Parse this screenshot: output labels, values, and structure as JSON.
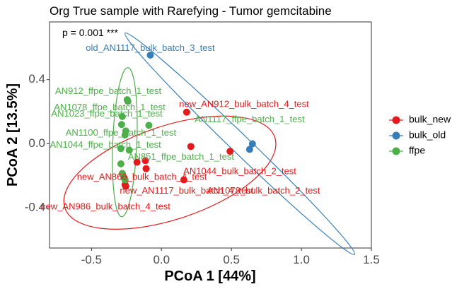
{
  "chart_data": {
    "type": "scatter",
    "title": "Org True sample with Rarefying - Tumor gemcitabine",
    "xlabel": "PCoA 1 [44%]",
    "ylabel": "PCoA 2 [13.5%]",
    "annotation": "p = 0.001 ***",
    "xlim": [
      -0.8,
      1.5
    ],
    "ylim": [
      -0.65,
      0.76
    ],
    "x_ticks": [
      -0.5,
      0.0,
      0.5,
      1.0,
      1.5
    ],
    "x_tick_labels": [
      "-0.5",
      "0.0",
      "0.5",
      "1.0",
      "1.5"
    ],
    "y_ticks": [
      -0.4,
      0.0,
      0.4
    ],
    "y_tick_labels": [
      "-0.4",
      "0.0",
      "0.4"
    ],
    "grid": false,
    "legend": {
      "position": "right",
      "entries": [
        {
          "name": "bulk_new",
          "color": "#e41a1c"
        },
        {
          "name": "bulk_old",
          "color": "#377eb8"
        },
        {
          "name": "ffpe",
          "color": "#4daf4a"
        }
      ]
    },
    "series": [
      {
        "name": "bulk_new",
        "color": "#e41a1c",
        "points": [
          {
            "x": 0.18,
            "y": 0.197
          },
          {
            "x": 0.21,
            "y": -0.017
          },
          {
            "x": 0.49,
            "y": -0.047
          },
          {
            "x": -0.115,
            "y": -0.105
          },
          {
            "x": -0.175,
            "y": -0.115
          },
          {
            "x": -0.11,
            "y": -0.155
          },
          {
            "x": 0.16,
            "y": -0.225
          },
          {
            "x": -0.265,
            "y": -0.215
          },
          {
            "x": -0.26,
            "y": -0.255
          },
          {
            "x": -0.255,
            "y": -0.265
          }
        ],
        "ellipse": {
          "center": [
            0.06,
            -0.18
          ],
          "points_on_boundary": [
            [
              -0.69,
              -0.4
            ],
            [
              0.55,
              0.13
            ],
            [
              -0.55,
              -0.2
            ],
            [
              0.52,
              -0.1
            ]
          ]
        }
      },
      {
        "name": "bulk_old",
        "color": "#377eb8",
        "points": [
          {
            "x": -0.08,
            "y": 0.553
          },
          {
            "x": 0.65,
            "y": 0.0
          },
          {
            "x": 0.63,
            "y": -0.035
          }
        ],
        "ellipse": {
          "center": [
            0.56,
            0.0
          ],
          "points_on_boundary": [
            [
              -0.26,
              0.69
            ],
            [
              1.38,
              -0.6
            ]
          ]
        }
      },
      {
        "name": "ffpe",
        "color": "#4daf4a",
        "points": [
          {
            "x": -0.245,
            "y": 0.275
          },
          {
            "x": -0.24,
            "y": 0.265
          },
          {
            "x": -0.28,
            "y": 0.17
          },
          {
            "x": -0.285,
            "y": 0.12
          },
          {
            "x": -0.09,
            "y": 0.115
          },
          {
            "x": -0.255,
            "y": 0.08
          },
          {
            "x": -0.26,
            "y": 0.055
          },
          {
            "x": -0.29,
            "y": -0.03
          },
          {
            "x": -0.23,
            "y": -0.04
          },
          {
            "x": -0.29,
            "y": -0.125
          },
          {
            "x": -0.28,
            "y": -0.185
          },
          {
            "x": -0.26,
            "y": -0.225
          }
        ],
        "ellipse": {
          "center": [
            -0.262,
            0.01
          ],
          "points_on_boundary": [
            [
              -0.24,
              0.475
            ],
            [
              -0.29,
              -0.46
            ]
          ]
        }
      }
    ],
    "point_labels": [
      {
        "text": "old_AN1117_bulk_batch_3_test",
        "series": "bulk_old",
        "x": -0.08,
        "y": 0.595
      },
      {
        "text": "AN912_ffpe_batch_1_test",
        "series": "ffpe",
        "x": -0.38,
        "y": 0.325
      },
      {
        "text": "AN1078_ffpe_batch_1_test",
        "series": "ffpe",
        "x": -0.37,
        "y": 0.225
      },
      {
        "text": "AN1023_ffpe_batch_1_test",
        "series": "ffpe",
        "x": -0.39,
        "y": 0.185
      },
      {
        "text": "AN1100_ffpe_batch_1_test",
        "series": "ffpe",
        "x": -0.29,
        "y": 0.065
      },
      {
        "text": "AN1044_ffpe_batch_1_test",
        "series": "ffpe",
        "x": -0.4,
        "y": -0.01
      },
      {
        "text": "AN851_ffpe_batch_1_test",
        "series": "ffpe",
        "x": 0.14,
        "y": -0.085
      },
      {
        "text": "AN1117_ffpe_batch_1_test",
        "series": "ffpe",
        "x": 0.63,
        "y": 0.15
      },
      {
        "text": "new_AN912_bulk_batch_4_test",
        "series": "bulk_new",
        "x": 0.59,
        "y": 0.245
      },
      {
        "text": "AN1044_bulk_batch_2_test",
        "series": "bulk_new",
        "x": 0.56,
        "y": -0.175
      },
      {
        "text": "new_AN866_bulk_batch_4_test",
        "series": "bulk_new",
        "x": -0.14,
        "y": -0.21
      },
      {
        "text": "new_AN1117_bulk_batch_4_test",
        "series": "bulk_new",
        "x": 0.18,
        "y": -0.295
      },
      {
        "text": "AN1078_bulk_batch_2_test",
        "series": "bulk_new",
        "x": 0.73,
        "y": -0.295
      },
      {
        "text": "new_AN986_bulk_batch_4_test",
        "series": "bulk_new",
        "x": -0.4,
        "y": -0.395
      }
    ]
  }
}
